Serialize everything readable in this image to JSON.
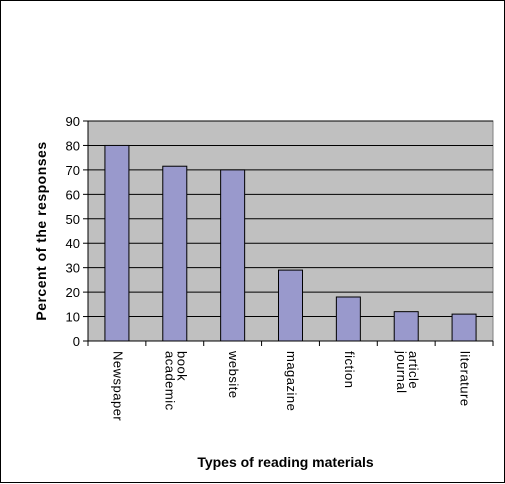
{
  "chart_data": {
    "type": "bar",
    "title": "",
    "xlabel": "Types of reading materials",
    "ylabel": "Percent of the responses",
    "categories": [
      [
        "Newspaper"
      ],
      [
        "academic",
        "book"
      ],
      [
        "website"
      ],
      [
        "magazine"
      ],
      [
        "fiction"
      ],
      [
        "journal",
        "article"
      ],
      [
        "literature"
      ]
    ],
    "values": [
      80,
      71.5,
      70,
      29,
      18,
      12,
      11
    ],
    "ylim": [
      0,
      90
    ],
    "yticks": [
      0,
      10,
      20,
      30,
      40,
      50,
      60,
      70,
      80,
      90
    ],
    "grid": true,
    "legend": "none",
    "colors": {
      "plot_background": "#c0c0c0",
      "bar_fill": "#9999cc",
      "bar_stroke": "#000000",
      "gridline": "#000000"
    }
  }
}
